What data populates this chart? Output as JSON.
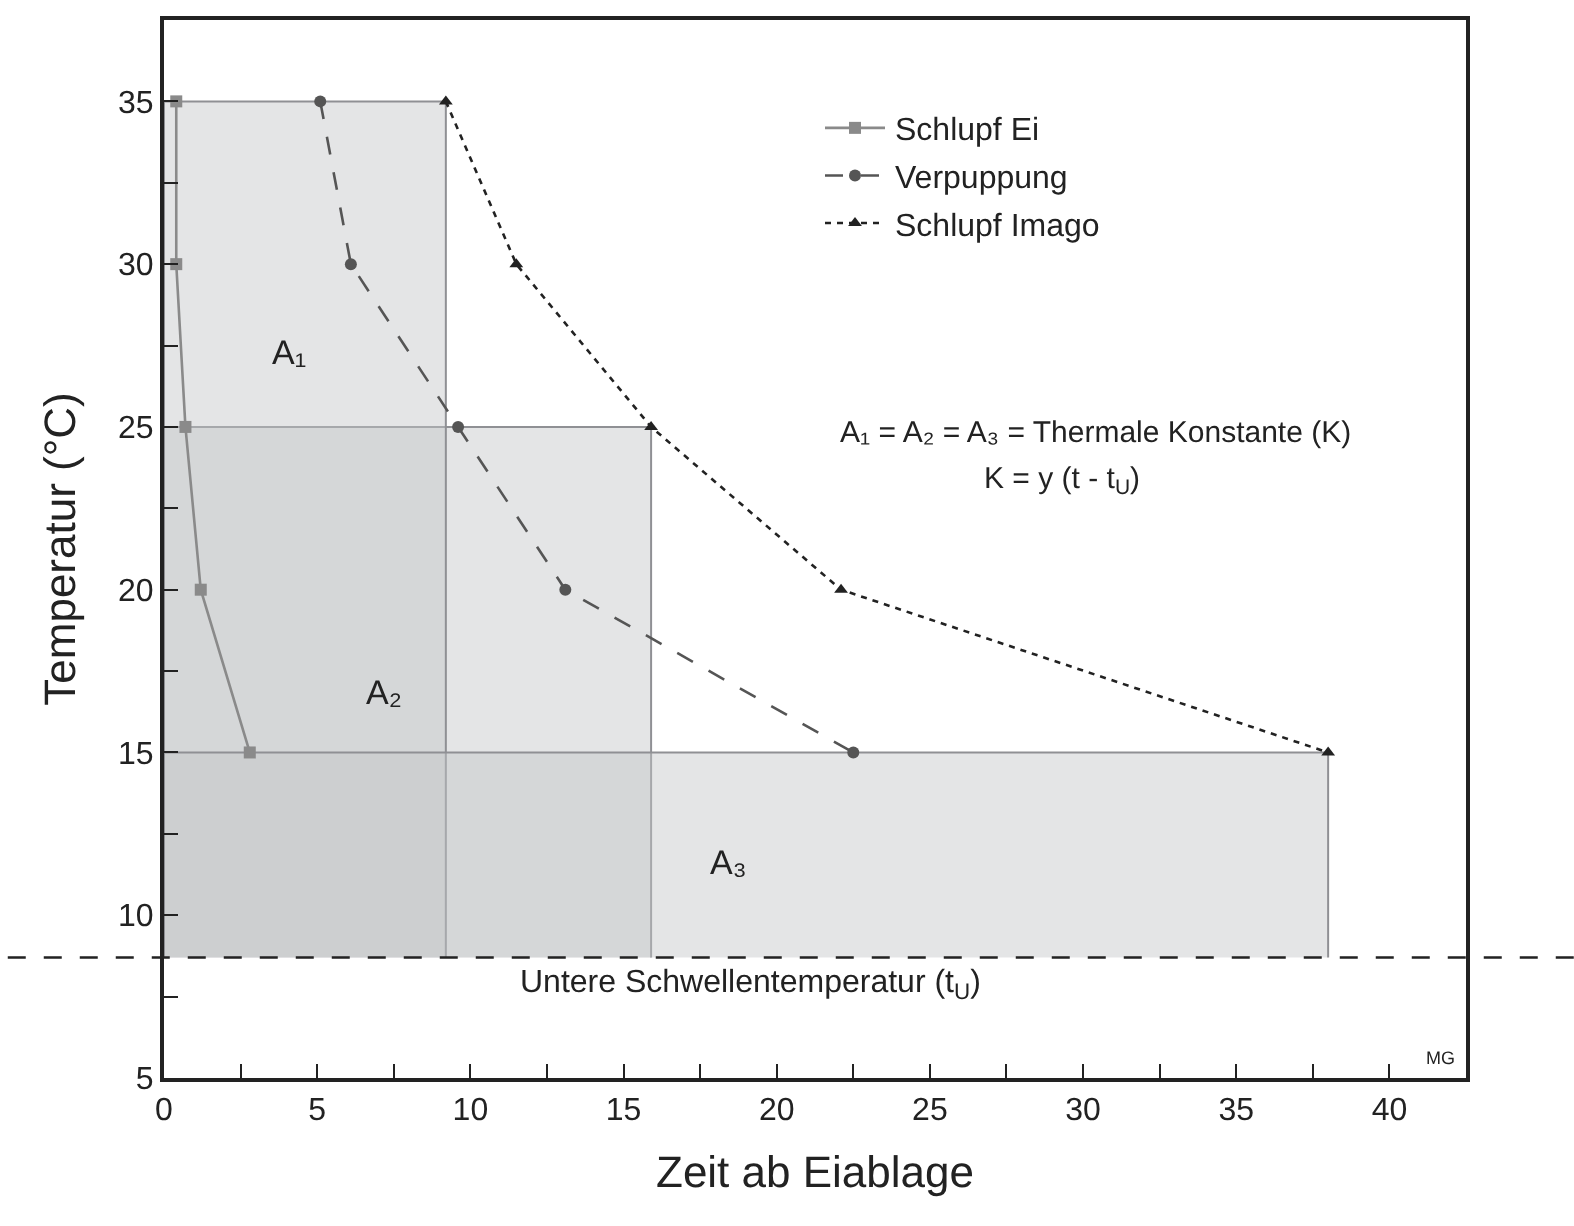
{
  "chart_data": {
    "type": "line",
    "xlabel": "Zeit ab Eiablage",
    "ylabel": "Temperatur (°C)",
    "xlim": [
      0,
      42.5
    ],
    "ylim": [
      5,
      37.5
    ],
    "xticks": [
      0,
      {
        "value": 2.5,
        "label": null
      },
      5,
      {
        "value": 7.5,
        "label": null
      },
      10,
      {
        "value": 12.5,
        "label": null
      },
      15,
      {
        "value": 17.5,
        "label": null
      },
      20,
      {
        "value": 22.5,
        "label": null
      },
      25,
      {
        "value": 27.5,
        "label": null
      },
      30,
      {
        "value": 32.5,
        "label": null
      },
      35,
      {
        "value": 37.5,
        "label": null
      },
      40
    ],
    "yticks": [
      5,
      {
        "value": 7.5,
        "label": null
      },
      10,
      {
        "value": 12.5,
        "label": null
      },
      15,
      {
        "value": 17.5,
        "label": null
      },
      20,
      {
        "value": 22.5,
        "label": null
      },
      25,
      {
        "value": 27.5,
        "label": null
      },
      30,
      {
        "value": 32.5,
        "label": null
      },
      35
    ],
    "legend": "top right",
    "series": [
      {
        "type": "area",
        "color": "#c4c5c8",
        "x": [
          0,
          0,
          15.9,
          15.9
        ],
        "values": [
          8.7,
          25,
          25,
          8.7
        ]
      },
      {
        "type": "area",
        "color": "#c4c5c8",
        "x": [
          0,
          0,
          9.2,
          9.2
        ],
        "values": [
          8.7,
          35,
          35,
          8.7
        ]
      },
      {
        "type": "area",
        "color": "#c4c5c8",
        "x": [
          0,
          0,
          38.0,
          38.0
        ],
        "values": [
          8.7,
          15,
          15,
          8.7
        ]
      },
      {
        "name": "Schlupf Ei",
        "color": "#8a8a8a",
        "marker": "square",
        "line_style": "solid",
        "x": [
          0.4,
          0.4,
          0.7,
          1.2,
          2.8
        ],
        "values": [
          35,
          30,
          25,
          20,
          15
        ]
      },
      {
        "name": "Verpuppung",
        "color": "#555555",
        "marker": "circle",
        "line_style": "dashed",
        "x": [
          5.1,
          6.1,
          9.6,
          13.1,
          22.5
        ],
        "values": [
          35,
          30,
          25,
          20,
          15
        ]
      },
      {
        "name": "Schlupf Imago",
        "color": "#222222",
        "marker": "triangle",
        "line_style": "dotted",
        "x": [
          9.2,
          11.5,
          15.9,
          22.1,
          38.0
        ],
        "values": [
          35,
          30,
          25,
          20,
          15
        ]
      }
    ],
    "ref_lines": [
      {
        "axis": "y",
        "value": 8.7,
        "label": "Untere Schwellentemperatur (t$_{U}$)",
        "color": "#222222",
        "line_style": "dashed"
      }
    ],
    "annotations": [
      "A₁",
      "A₂",
      "A₃",
      "A₁ = A₂ = A₃ = Thermale Konstante (K)",
      "K = y (t - t$_{U}$)",
      "MG"
    ]
  }
}
